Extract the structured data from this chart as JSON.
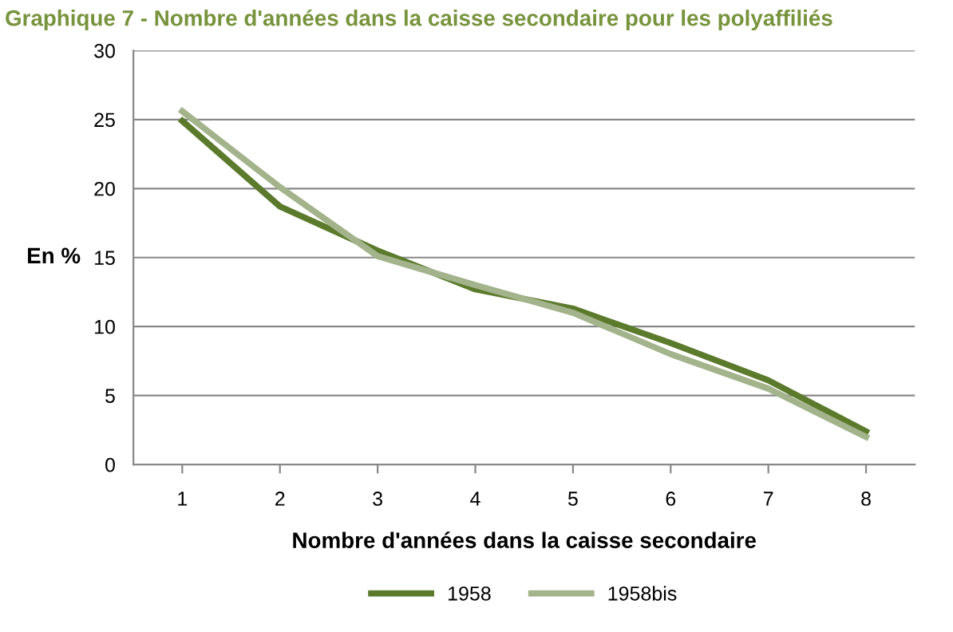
{
  "chart_data": {
    "type": "line",
    "title": "Graphique 7 - Nombre d'années dans la caisse secondaire pour les polyaffiliés",
    "xlabel": "Nombre d'années dans la caisse secondaire",
    "ylabel": "En %",
    "categories": [
      "1",
      "2",
      "3",
      "4",
      "5",
      "6",
      "7",
      "8"
    ],
    "series": [
      {
        "name": "1958",
        "color": "#5b7a2b",
        "values": [
          24.9,
          18.7,
          15.5,
          12.7,
          11.3,
          8.8,
          6.1,
          2.4
        ]
      },
      {
        "name": "1958bis",
        "color": "#a3b38b",
        "values": [
          25.6,
          20.1,
          15.1,
          13.0,
          11.0,
          8.0,
          5.5,
          2.0
        ]
      }
    ],
    "ylim": [
      0,
      30
    ],
    "yticks": [
      0,
      5,
      10,
      15,
      20,
      25,
      30
    ],
    "grid": "y",
    "legend": "bottom",
    "marker": "none",
    "line_style": "solid"
  }
}
